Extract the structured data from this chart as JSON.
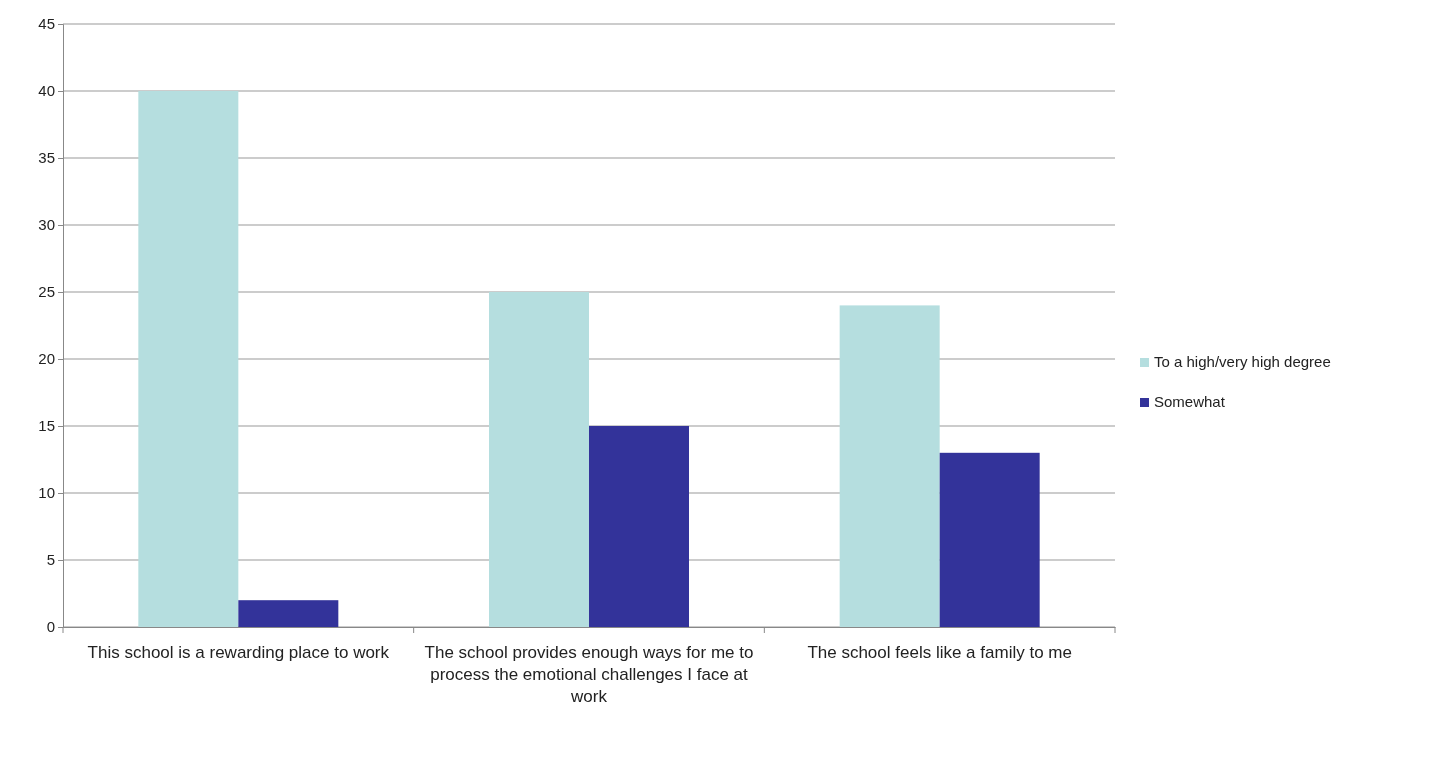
{
  "chart_data": {
    "type": "bar",
    "categories": [
      "This school is a rewarding place to work",
      "The school provides enough ways for me to process the emotional challenges I face at work",
      "The school feels like a family to me"
    ],
    "series": [
      {
        "name": "To a high/very high degree",
        "color": "#b5dedf",
        "values": [
          40,
          25,
          24
        ]
      },
      {
        "name": "Somewhat",
        "color": "#33339a",
        "values": [
          2,
          15,
          13
        ]
      }
    ],
    "ylim": [
      0,
      45
    ],
    "yticks": [
      0,
      5,
      10,
      15,
      20,
      25,
      30,
      35,
      40,
      45
    ],
    "grid": "y",
    "legend": "right"
  }
}
